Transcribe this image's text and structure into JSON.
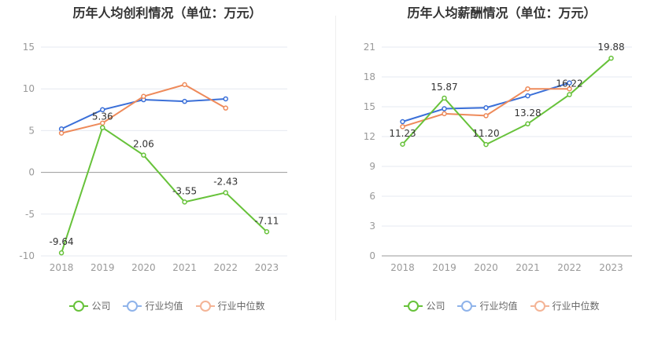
{
  "chart_data": [
    {
      "type": "line",
      "title": "历年人均创利情况（单位：万元）",
      "categories": [
        "2018",
        "2019",
        "2020",
        "2021",
        "2022",
        "2023"
      ],
      "ylim": [
        -10,
        15
      ],
      "yticks": [
        "15",
        "10",
        "5",
        "0",
        "-5",
        "-10"
      ],
      "ytick_values": [
        15,
        10,
        5,
        0,
        -5,
        -10
      ],
      "series": [
        {
          "name": "公司",
          "color": "#67c23a",
          "values": [
            -9.64,
            5.36,
            2.06,
            -3.55,
            -2.43,
            -7.11
          ],
          "labels": [
            "-9.64",
            "5.36",
            "2.06",
            "-3.55",
            "-2.43",
            "-7.11"
          ]
        },
        {
          "name": "行业均值",
          "color": "#3a6fd8",
          "values": [
            5.2,
            7.5,
            8.7,
            8.5,
            8.8,
            null
          ]
        },
        {
          "name": "行业中位数",
          "color": "#ee8a5a",
          "values": [
            4.7,
            5.9,
            9.1,
            10.5,
            7.7,
            null
          ]
        }
      ]
    },
    {
      "type": "line",
      "title": "历年人均薪酬情况（单位：万元）",
      "categories": [
        "2018",
        "2019",
        "2020",
        "2021",
        "2022",
        "2023"
      ],
      "ylim": [
        0,
        21
      ],
      "yticks": [
        "21",
        "18",
        "15",
        "12",
        "9",
        "6",
        "3",
        "0"
      ],
      "ytick_values": [
        21,
        18,
        15,
        12,
        9,
        6,
        3,
        0
      ],
      "series": [
        {
          "name": "公司",
          "color": "#67c23a",
          "values": [
            11.23,
            15.87,
            11.2,
            13.28,
            16.22,
            19.88
          ],
          "labels": [
            "11.23",
            "15.87",
            "11.20",
            "13.28",
            "16.22",
            "19.88"
          ]
        },
        {
          "name": "行业均值",
          "color": "#3a6fd8",
          "values": [
            13.5,
            14.8,
            14.9,
            16.1,
            17.4,
            null
          ]
        },
        {
          "name": "行业中位数",
          "color": "#ee8a5a",
          "values": [
            13.0,
            14.3,
            14.1,
            16.8,
            16.8,
            null
          ]
        }
      ]
    }
  ],
  "legend": [
    {
      "label": "公司",
      "color": "#67c23a"
    },
    {
      "label": "行业均值",
      "color": "#8fb3ea"
    },
    {
      "label": "行业中位数",
      "color": "#f4b496"
    }
  ]
}
